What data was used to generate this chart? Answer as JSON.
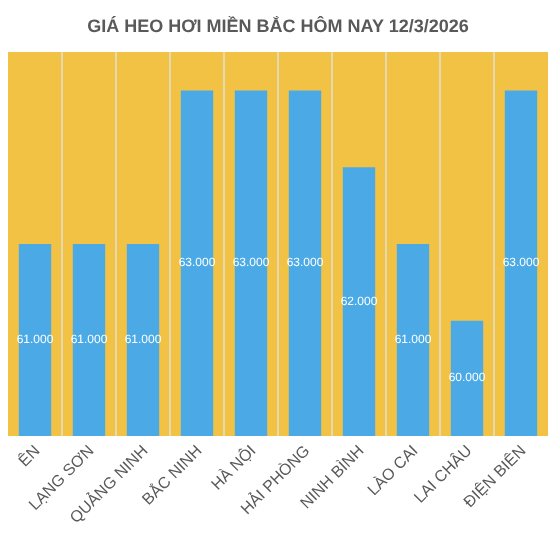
{
  "chart_data": {
    "type": "bar",
    "title": "GIÁ HEO HƠI MIỀN BẮC HÔM NAY 12/3/2026",
    "categories": [
      "ÊN",
      "LẠNG SƠN",
      "QUẢNG NINH",
      "BẮC NINH",
      "HÀ NỘI",
      "HẢI PHÒNG",
      "NINH BÌNH",
      "LÀO CAI",
      "LAI CHÂU",
      "ĐIỆN BIÊN"
    ],
    "values": [
      61000,
      61000,
      61000,
      63000,
      63000,
      63000,
      62000,
      61000,
      60000,
      63000
    ],
    "value_labels": [
      "61.000",
      "61.000",
      "61.000",
      "63.000",
      "63.000",
      "63.000",
      "62.000",
      "61.000",
      "60.000",
      "63.000"
    ],
    "color": "#4baae6",
    "ylim": [
      58500,
      63500
    ],
    "tick_labels": "x",
    "grid": "x"
  }
}
